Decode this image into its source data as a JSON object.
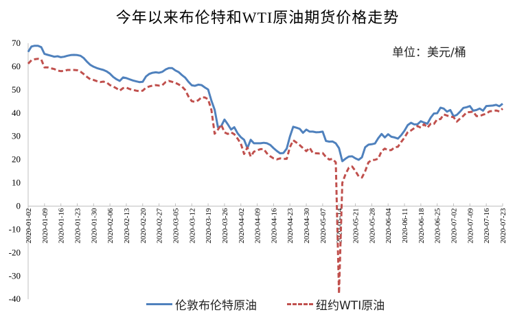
{
  "title": "今年以来布伦特和WTI原油期货价格走势",
  "unit_label": "单位：美元/桶",
  "legend": [
    {
      "name": "伦敦布伦特原油",
      "color": "#4F81BD",
      "style": "solid"
    },
    {
      "name": "纽约WTI原油",
      "color": "#C0504D",
      "style": "dashed"
    }
  ],
  "chart_data": {
    "type": "line",
    "title": "今年以来布伦特和WTI原油期货价格走势",
    "xlabel": "",
    "ylabel": "单位：美元/桶",
    "ylim": [
      -40,
      70
    ],
    "yticks": [
      70,
      60,
      50,
      40,
      30,
      20,
      10,
      0,
      -10,
      -20,
      -30,
      -40
    ],
    "grid": false,
    "legend_position": "bottom",
    "x_tick_labels": [
      "2020-01-02",
      "2020-01-09",
      "2020-01-16",
      "2020-01-23",
      "2020-01-30",
      "2020-02-06",
      "2020-02-13",
      "2020-02-20",
      "2020-02-27",
      "2020-03-05",
      "2020-03-12",
      "2020-03-19",
      "2020-03-26",
      "2020-04-02",
      "2020-04-09",
      "2020-04-16",
      "2020-04-23",
      "2020-04-30",
      "2020-05-07",
      "2020-05-14",
      "2020-05-21",
      "2020-05-28",
      "2020-06-04",
      "2020-06-11",
      "2020-06-18",
      "2020-06-25",
      "2020-07-02",
      "2020-07-09",
      "2020-07-16",
      "2020-07-23"
    ],
    "x_index": [
      0,
      1,
      2,
      3,
      4,
      5,
      6,
      7,
      8,
      9,
      10,
      11,
      12,
      13,
      14,
      15,
      16,
      17,
      18,
      19,
      20,
      21,
      22,
      23,
      24,
      25,
      26,
      27,
      28,
      29,
      30,
      31,
      32,
      33,
      34,
      35,
      36,
      37,
      38,
      39,
      40,
      41,
      42,
      43,
      44,
      45,
      46,
      47,
      48,
      49,
      50,
      51,
      52,
      53,
      54,
      55,
      56,
      57,
      58,
      59,
      60,
      61,
      62,
      63,
      64,
      65,
      66,
      67,
      68,
      69,
      70,
      71,
      72,
      73,
      74,
      75,
      76,
      77,
      78,
      79,
      80,
      81,
      82,
      83,
      84,
      85,
      86,
      87,
      88,
      89,
      90,
      91,
      92,
      93,
      94,
      95,
      96,
      97,
      98,
      99,
      100,
      101,
      102,
      103,
      104,
      105,
      106,
      107,
      108,
      109,
      110,
      111,
      112,
      113,
      114,
      115,
      116,
      117,
      118,
      119,
      120,
      121,
      122,
      123,
      124,
      125,
      126,
      127,
      128,
      129,
      130,
      131,
      132,
      133,
      134,
      135,
      136,
      137,
      138,
      139,
      140,
      141,
      142,
      143,
      144,
      145
    ],
    "series": [
      {
        "name": "伦敦布伦特原油",
        "values": [
          66.3,
          68.6,
          68.9,
          68.9,
          68.3,
          65.4,
          65.0,
          64.6,
          64.2,
          64.4,
          64.0,
          64.2,
          64.6,
          64.9,
          65.0,
          64.9,
          64.6,
          63.6,
          62.0,
          60.7,
          59.9,
          59.3,
          58.9,
          58.5,
          57.9,
          56.9,
          55.5,
          54.5,
          53.8,
          55.3,
          55.0,
          54.5,
          54.0,
          53.6,
          53.3,
          53.4,
          55.7,
          56.8,
          57.3,
          57.5,
          57.3,
          57.7,
          58.7,
          59.3,
          59.3,
          58.3,
          57.6,
          56.3,
          55.2,
          53.4,
          51.9,
          51.7,
          52.2,
          52.0,
          51.0,
          50.1,
          45.3,
          41.4,
          33.9,
          34.4,
          37.2,
          35.2,
          32.9,
          33.9,
          31.3,
          29.6,
          28.5,
          24.9,
          28.5,
          27.0,
          27.0,
          27.0,
          27.2,
          27.0,
          26.3,
          24.9,
          23.7,
          22.7,
          22.8,
          24.7,
          29.9,
          34.1,
          33.7,
          33.2,
          31.5,
          32.9,
          32.0,
          32.0,
          31.7,
          31.8,
          32.0,
          28.0,
          27.7,
          27.8,
          27.0,
          24.9,
          19.3,
          20.4,
          21.3,
          21.4,
          20.5,
          19.9,
          21.0,
          25.3,
          26.4,
          26.6,
          26.9,
          29.2,
          31.0,
          29.5,
          30.9,
          29.8,
          29.5,
          29.0,
          30.5,
          32.4,
          34.8,
          35.8,
          35.1,
          35.2,
          36.5,
          35.9,
          35.4,
          38.0,
          39.8,
          39.9,
          42.3,
          41.9,
          40.6,
          41.3,
          38.6,
          39.2,
          40.6,
          42.2,
          42.5,
          43.0,
          41.0,
          41.3,
          41.9,
          41.0,
          43.0,
          43.1,
          43.2,
          43.5,
          42.9,
          44.0
        ]
      },
      {
        "name": "纽约WTI原油",
        "values": [
          61.2,
          62.7,
          63.1,
          63.3,
          63.0,
          59.6,
          59.6,
          59.2,
          58.9,
          58.2,
          58.0,
          58.1,
          58.5,
          58.5,
          58.5,
          58.4,
          57.8,
          56.7,
          55.5,
          54.5,
          54.2,
          53.7,
          53.3,
          53.5,
          53.1,
          52.0,
          51.4,
          50.6,
          49.6,
          50.7,
          50.9,
          50.3,
          50.0,
          49.6,
          49.4,
          49.6,
          50.9,
          51.4,
          51.8,
          52.0,
          51.8,
          52.0,
          53.3,
          53.8,
          53.4,
          53.0,
          52.3,
          51.4,
          49.9,
          47.1,
          45.1,
          44.8,
          45.5,
          46.8,
          46.7,
          45.9,
          41.3,
          31.1,
          32.9,
          35.0,
          31.7,
          31.0,
          31.7,
          30.9,
          29.0,
          26.8,
          22.4,
          25.2,
          21.3,
          23.4,
          24.0,
          24.5,
          24.5,
          22.6,
          21.4,
          20.5,
          20.1,
          20.5,
          20.3,
          20.3,
          25.3,
          28.3,
          27.3,
          26.2,
          24.9,
          23.6,
          25.1,
          22.8,
          22.7,
          22.6,
          22.8,
          21.1,
          20.0,
          20.3,
          18.8,
          -37.6,
          10.0,
          13.8,
          16.5,
          17.0,
          15.1,
          12.8,
          12.3,
          15.0,
          18.8,
          19.8,
          19.9,
          20.4,
          23.6,
          24.7,
          24.0,
          24.1,
          25.3,
          25.5,
          27.6,
          29.4,
          31.8,
          32.5,
          33.5,
          34.4,
          33.7,
          35.2,
          33.7,
          35.4,
          35.3,
          37.3,
          37.4,
          39.4,
          38.9,
          38.5,
          38.2,
          36.3,
          37.6,
          38.8,
          40.3,
          40.4,
          40.6,
          38.7,
          38.7,
          39.3,
          39.7,
          40.7,
          40.9,
          41.1,
          40.7,
          41.9
        ]
      }
    ]
  }
}
